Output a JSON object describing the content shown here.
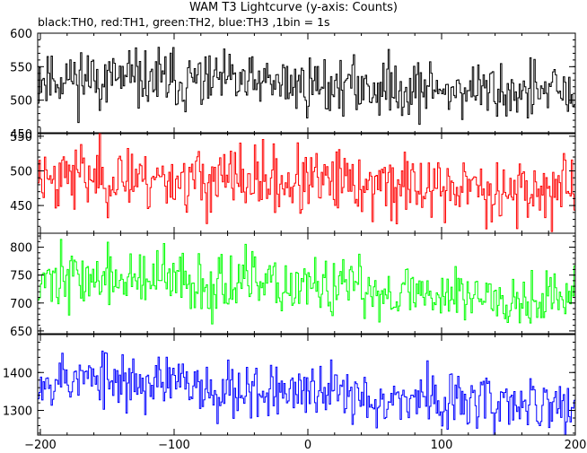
{
  "chart_data": {
    "type": "line",
    "title": "WAM T3 Lightcurve (y-axis: Counts)",
    "subtitle": "black:TH0, red:TH1, green:TH2, blue:TH3 ,1bin = 1s",
    "xlim": [
      -202,
      200
    ],
    "x_ticks": [
      -200,
      -100,
      0,
      100,
      200
    ],
    "x_tick_labels": [
      "-200",
      "-100",
      "0",
      "100",
      "200"
    ],
    "panels": [
      {
        "series": "TH0",
        "color": "#000000",
        "ylim": [
          450,
          600
        ],
        "y_ticks": [
          450,
          500,
          550,
          600
        ],
        "y_tick_labels": [
          "450",
          "500",
          "550",
          "600"
        ],
        "mean_start": 535,
        "mean_end": 510,
        "noise": 22,
        "seed": 11
      },
      {
        "series": "TH1",
        "color": "#ff0000",
        "ylim": [
          410,
          555
        ],
        "y_ticks": [
          450,
          500,
          550
        ],
        "y_tick_labels": [
          "450",
          "500",
          "550"
        ],
        "mean_start": 495,
        "mean_end": 470,
        "noise": 24,
        "seed": 23
      },
      {
        "series": "TH2",
        "color": "#00ff00",
        "ylim": [
          645,
          825
        ],
        "y_ticks": [
          650,
          700,
          750,
          800
        ],
        "y_tick_labels": [
          "650",
          "700",
          "750",
          "800"
        ],
        "mean_start": 748,
        "mean_end": 708,
        "noise": 27,
        "seed": 37
      },
      {
        "series": "TH3",
        "color": "#0000ff",
        "ylim": [
          1235,
          1500
        ],
        "y_ticks": [
          1300,
          1400
        ],
        "y_tick_labels": [
          "1300",
          "1400"
        ],
        "mean_start": 1390,
        "mean_end": 1305,
        "noise": 38,
        "seed": 53
      }
    ]
  }
}
